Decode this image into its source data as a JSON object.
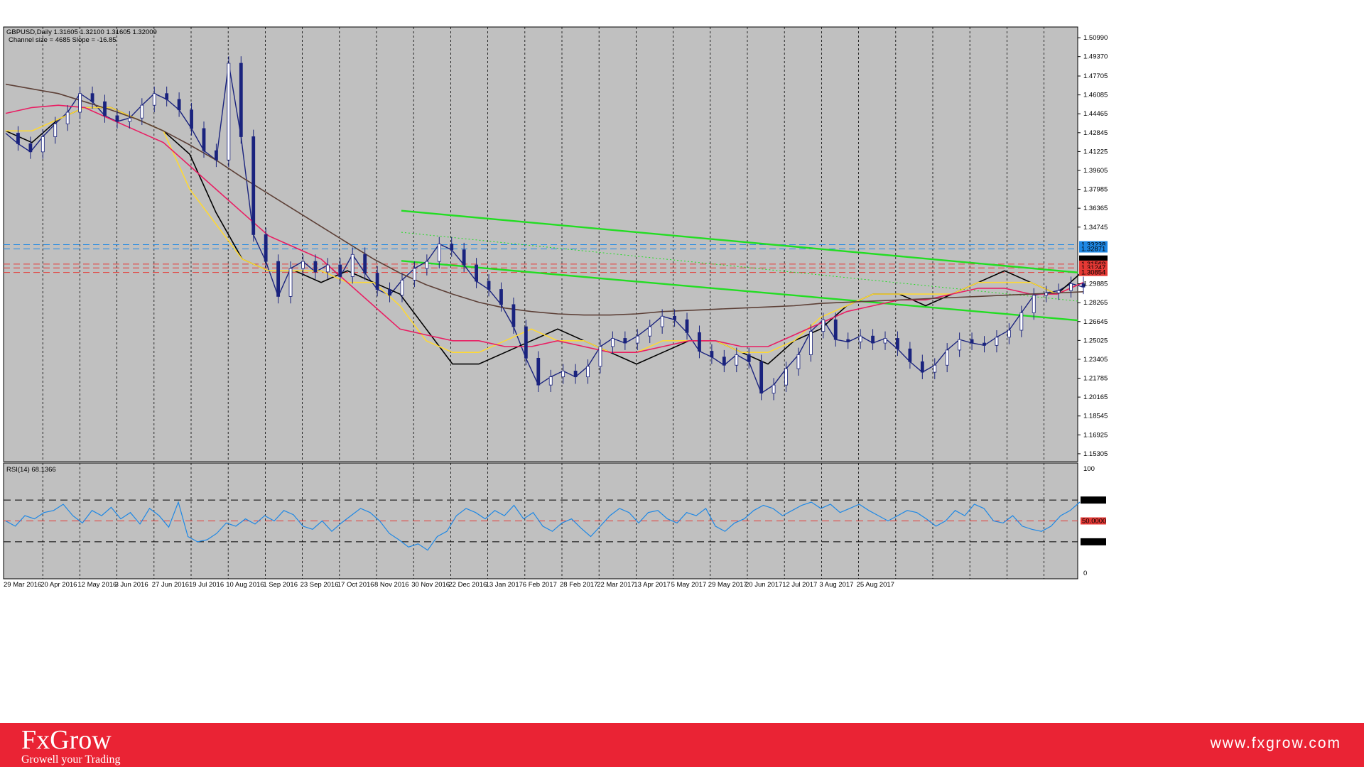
{
  "chart_data": [
    {
      "type": "line",
      "title": "GBPUSD,Daily  1.31605 1.32100 1.31605 1.32009",
      "subtitle": "Channel size = 4685 Slope = -16.85",
      "ylim": [
        1.1463,
        1.5191
      ],
      "y_ticks": [
        "1.50990",
        "1.49370",
        "1.47705",
        "1.46085",
        "1.44465",
        "1.42845",
        "1.41225",
        "1.39605",
        "1.37985",
        "1.36365",
        "1.34745",
        "1.29885",
        "1.28265",
        "1.26645",
        "1.25025",
        "1.23405",
        "1.21785",
        "1.20165",
        "1.18545",
        "1.16925",
        "1.15305"
      ],
      "x_ticks": [
        "29 Mar 2016",
        "20 Apr 2016",
        "12 May 2016",
        "3 Jun 2016",
        "27 Jun 2016",
        "19 Jul 2016",
        "10 Aug 2016",
        "1 Sep 2016",
        "23 Sep 2016",
        "17 Oct 2016",
        "8 Nov 2016",
        "30 Nov 2016",
        "22 Dec 2016",
        "13 Jan 2017",
        "6 Feb 2017",
        "28 Feb 2017",
        "22 Mar 2017",
        "13 Apr 2017",
        "5 May 2017",
        "29 May 2017",
        "20 Jun 2017",
        "12 Jul 2017",
        "3 Aug 2017",
        "25 Aug 2017"
      ],
      "price_badges": [
        {
          "value": "1.33238",
          "color": "#1e88e5"
        },
        {
          "value": "1.32871",
          "color": "#1e88e5"
        },
        {
          "value": "1.32009",
          "color": "#000000"
        },
        {
          "value": "1.31569",
          "color": "#e53935"
        },
        {
          "value": "1.31247",
          "color": "#e53935"
        },
        {
          "value": "1.30854",
          "color": "#e53935"
        }
      ],
      "series": [
        {
          "name": "close",
          "x": [
            0,
            4,
            8,
            12,
            16,
            20,
            24,
            28,
            32,
            36,
            40,
            44,
            48,
            52,
            56,
            60,
            64,
            68,
            72,
            76,
            80,
            84,
            88,
            92,
            96,
            100,
            104,
            108,
            112,
            116,
            120,
            124,
            128,
            132,
            136,
            140,
            144,
            148,
            152,
            156,
            160,
            164,
            168,
            172,
            176,
            180,
            184,
            188,
            192,
            196,
            200,
            204,
            208,
            212,
            216,
            220,
            224,
            228,
            232,
            236,
            240,
            244,
            248,
            252,
            256,
            260,
            264,
            268,
            272,
            276,
            280,
            284,
            288,
            292,
            296,
            300,
            304,
            308,
            312,
            316,
            320,
            324,
            328,
            332,
            336,
            340,
            344,
            348
          ],
          "y": [
            1.428,
            1.419,
            1.412,
            1.425,
            1.436,
            1.446,
            1.462,
            1.455,
            1.443,
            1.438,
            1.441,
            1.452,
            1.462,
            1.457,
            1.448,
            1.432,
            1.413,
            1.405,
            1.488,
            1.425,
            1.341,
            1.318,
            1.288,
            1.312,
            1.318,
            1.309,
            1.315,
            1.305,
            1.324,
            1.308,
            1.294,
            1.289,
            1.302,
            1.312,
            1.318,
            1.333,
            1.328,
            1.315,
            1.301,
            1.294,
            1.281,
            1.262,
            1.235,
            1.212,
            1.219,
            1.224,
            1.219,
            1.228,
            1.245,
            1.252,
            1.248,
            1.254,
            1.262,
            1.271,
            1.268,
            1.257,
            1.241,
            1.236,
            1.229,
            1.238,
            1.232,
            1.205,
            1.212,
            1.226,
            1.238,
            1.258,
            1.268,
            1.251,
            1.249,
            1.254,
            1.248,
            1.252,
            1.243,
            1.232,
            1.223,
            1.229,
            1.242,
            1.251,
            1.248,
            1.246,
            1.253,
            1.259,
            1.274,
            1.289,
            1.291,
            1.293,
            1.299,
            1.296
          ],
          "color": "#1a237e"
        },
        {
          "name": "",
          "y": [
            1.43,
            1.42,
            1.44,
            1.45,
            1.45,
            1.44,
            1.43,
            1.41,
            1.36,
            1.32,
            1.31,
            1.31,
            1.3,
            1.31,
            1.3,
            1.29,
            1.26,
            1.23,
            1.23,
            1.24,
            1.25,
            1.26,
            1.25,
            1.24,
            1.23,
            1.24,
            1.25,
            1.25,
            1.24,
            1.23,
            1.25,
            1.26,
            1.28,
            1.29,
            1.29,
            1.28,
            1.29,
            1.3,
            1.31,
            1.3,
            1.29,
            1.31
          ],
          "color": "#000000"
        },
        {
          "name": "",
          "y": [
            1.43,
            1.43,
            1.44,
            1.45,
            1.45,
            1.44,
            1.43,
            1.38,
            1.35,
            1.32,
            1.31,
            1.31,
            1.31,
            1.3,
            1.3,
            1.28,
            1.25,
            1.24,
            1.24,
            1.25,
            1.26,
            1.25,
            1.25,
            1.24,
            1.24,
            1.25,
            1.25,
            1.25,
            1.24,
            1.24,
            1.25,
            1.27,
            1.28,
            1.29,
            1.29,
            1.29,
            1.29,
            1.3,
            1.3,
            1.3,
            1.29,
            1.3
          ],
          "color": "#fdd835"
        },
        {
          "name": "",
          "y": [
            1.445,
            1.45,
            1.452,
            1.45,
            1.44,
            1.43,
            1.42,
            1.4,
            1.38,
            1.36,
            1.34,
            1.33,
            1.32,
            1.3,
            1.28,
            1.26,
            1.255,
            1.25,
            1.25,
            1.245,
            1.245,
            1.25,
            1.245,
            1.24,
            1.24,
            1.245,
            1.25,
            1.25,
            1.245,
            1.245,
            1.255,
            1.265,
            1.275,
            1.28,
            1.285,
            1.285,
            1.29,
            1.295,
            1.295,
            1.29,
            1.29,
            1.3
          ],
          "color": "#e91e63"
        },
        {
          "name": "",
          "y": [
            1.47,
            1.466,
            1.462,
            1.455,
            1.448,
            1.44,
            1.43,
            1.418,
            1.405,
            1.39,
            1.376,
            1.362,
            1.348,
            1.334,
            1.32,
            1.308,
            1.298,
            1.29,
            1.283,
            1.278,
            1.275,
            1.273,
            1.272,
            1.272,
            1.273,
            1.275,
            1.276,
            1.277,
            1.278,
            1.279,
            1.28,
            1.282,
            1.283,
            1.284,
            1.285,
            1.286,
            1.287,
            1.288,
            1.289,
            1.29,
            1.291,
            1.292
          ],
          "color": "#5d4037"
        }
      ],
      "channel_lines": [
        {
          "name": "upper",
          "y_start": 1.3615,
          "y_end": 1.3085,
          "color": "#22dd22"
        },
        {
          "name": "middle",
          "y_start": 1.3185,
          "y_end": 1.2675,
          "color": "#22dd22"
        },
        {
          "name": "lower_dotted",
          "y_start": 1.343,
          "y_end": 1.284,
          "color": "#22dd22"
        }
      ],
      "h_lines": [
        {
          "value": 1.33238,
          "color": "#1e88e5"
        },
        {
          "value": 1.32871,
          "color": "#1e88e5"
        },
        {
          "value": 1.31569,
          "color": "#e53935"
        },
        {
          "value": 1.31247,
          "color": "#e53935"
        },
        {
          "value": 1.30854,
          "color": "#e53935"
        }
      ]
    },
    {
      "type": "line",
      "title": "RSI(14) 68.1366",
      "ylim": [
        0,
        100
      ],
      "y_ticks": [
        "100",
        "70.0000",
        "50.0000",
        "30.0000",
        "0"
      ],
      "levels": [
        {
          "value": 70,
          "color": "#000000"
        },
        {
          "value": 50,
          "color": "#e53935"
        },
        {
          "value": 30,
          "color": "#000000"
        }
      ],
      "series": [
        {
          "name": "RSI(14)",
          "y": [
            50,
            45,
            55,
            52,
            58,
            60,
            66,
            55,
            48,
            60,
            55,
            63,
            52,
            58,
            47,
            62,
            55,
            44,
            68,
            35,
            30,
            32,
            38,
            48,
            45,
            52,
            47,
            55,
            50,
            60,
            56,
            45,
            42,
            50,
            40,
            48,
            55,
            62,
            58,
            50,
            38,
            32,
            25,
            28,
            22,
            35,
            40,
            55,
            62,
            58,
            52,
            60,
            55,
            65,
            52,
            58,
            45,
            40,
            48,
            52,
            43,
            35,
            45,
            55,
            62,
            58,
            48,
            58,
            60,
            52,
            48,
            58,
            55,
            62,
            45,
            40,
            48,
            52,
            60,
            65,
            62,
            55,
            60,
            65,
            68,
            62,
            66,
            58,
            62,
            66,
            60,
            55,
            50,
            55,
            60,
            58,
            52,
            45,
            50,
            60,
            55,
            66,
            62,
            50,
            48,
            55,
            45,
            42,
            40,
            45,
            55,
            60,
            68
          ],
          "color": "#1e88e5"
        }
      ]
    }
  ],
  "footer": {
    "brand_name": "FxGrow",
    "brand_tagline": "Growell your Trading",
    "website": "www.fxgrow.com"
  }
}
